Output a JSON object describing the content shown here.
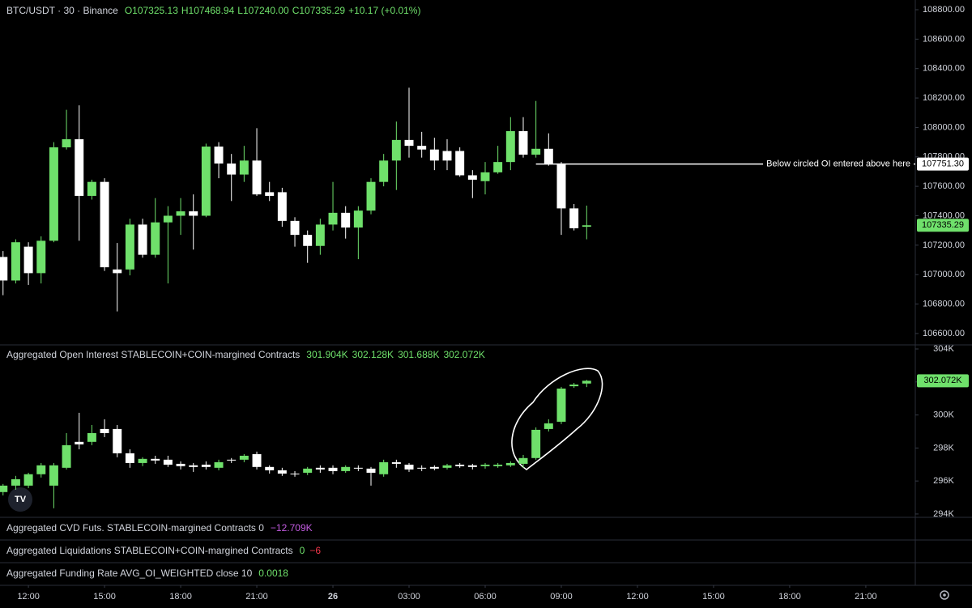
{
  "chart_data": [
    {
      "type": "candlestick",
      "title": "BTC/USDT · 30 · Binance",
      "ohlc_labels": [
        "O107325.13",
        "H107468.94",
        "L107240.00",
        "C107335.29",
        "+10.17 (+0.01%)"
      ],
      "x": [
        -1,
        -0.5,
        0,
        0.5,
        1,
        1.5,
        2,
        2.5,
        3,
        3.5,
        4,
        4.5,
        5,
        5.5,
        6,
        6.5,
        7,
        7.5,
        8,
        8.5,
        9,
        9.5,
        10,
        10.5,
        11,
        11.5,
        12,
        12.5,
        13,
        13.5,
        14,
        14.5,
        15,
        15.5,
        16,
        16.5,
        17,
        17.5,
        18,
        18.5,
        19,
        19.5,
        20,
        20.5,
        21,
        21.5,
        22
      ],
      "open": [
        107120,
        106960,
        107190,
        107010,
        107230,
        107865,
        107920,
        107535,
        107630,
        107035,
        107035,
        107340,
        107135,
        107355,
        107400,
        107430,
        107400,
        107870,
        107755,
        107680,
        107775,
        107560,
        107560,
        107365,
        107270,
        107195,
        107340,
        107420,
        107320,
        107435,
        107630,
        107775,
        107915,
        107875,
        107850,
        107840,
        107840,
        107675,
        107635,
        107695,
        107765,
        107975,
        107815,
        107855,
        107755,
        107450,
        107325.13
      ],
      "high": [
        107160,
        107240,
        107220,
        107260,
        107900,
        108120,
        108150,
        107645,
        107655,
        107215,
        107380,
        107380,
        107520,
        107465,
        107520,
        107545,
        107890,
        107900,
        107820,
        107875,
        107995,
        107630,
        107590,
        107390,
        107300,
        107380,
        107630,
        107465,
        107465,
        107655,
        107820,
        108040,
        108270,
        107970,
        107930,
        107920,
        107865,
        107710,
        107765,
        107875,
        108070,
        108070,
        108180,
        107960,
        107765,
        107480,
        107468.94
      ],
      "low": [
        106860,
        106940,
        106930,
        106940,
        107220,
        107850,
        107230,
        107510,
        107025,
        106750,
        106995,
        107115,
        107115,
        106940,
        107270,
        107170,
        107390,
        107655,
        107500,
        107630,
        107535,
        107500,
        107325,
        107190,
        107080,
        107135,
        107300,
        107245,
        107105,
        107410,
        107600,
        107575,
        107795,
        107795,
        107710,
        107710,
        107665,
        107520,
        107545,
        107685,
        107710,
        107795,
        107795,
        107740,
        107270,
        107300,
        107240
      ],
      "close": [
        106960,
        107220,
        107010,
        107230,
        107865,
        107920,
        107535,
        107630,
        107050,
        107010,
        107340,
        107135,
        107355,
        107400,
        107430,
        107400,
        107870,
        107755,
        107680,
        107775,
        107545,
        107535,
        107365,
        107270,
        107195,
        107340,
        107420,
        107320,
        107435,
        107630,
        107775,
        107915,
        107875,
        107850,
        107775,
        107775,
        107675,
        107645,
        107695,
        107765,
        107975,
        107815,
        107855,
        107755,
        107450,
        107315,
        107335.29
      ],
      "up_color": "#6fe06b",
      "down_color": "#ffffff",
      "xlim": [
        -1.12,
        34.95
      ],
      "xticks": [
        {
          "value": 0,
          "label": "12:00"
        },
        {
          "value": 3,
          "label": "15:00"
        },
        {
          "value": 6,
          "label": "18:00"
        },
        {
          "value": 9,
          "label": "21:00"
        },
        {
          "value": 12,
          "label": "26"
        },
        {
          "value": 15,
          "label": "03:00"
        },
        {
          "value": 18,
          "label": "06:00"
        },
        {
          "value": 21,
          "label": "09:00"
        },
        {
          "value": 24,
          "label": "12:00"
        },
        {
          "value": 27,
          "label": "15:00"
        },
        {
          "value": 30,
          "label": "18:00"
        },
        {
          "value": 33,
          "label": "21:00"
        }
      ],
      "ylim": [
        106528,
        108866
      ],
      "yticks": [
        {
          "value": 106600,
          "label": "106600.00"
        },
        {
          "value": 106800,
          "label": "106800.00"
        },
        {
          "value": 107000,
          "label": "107000.00"
        },
        {
          "value": 107200,
          "label": "107200.00"
        },
        {
          "value": 107400,
          "label": "107400.00"
        },
        {
          "value": 107600,
          "label": "107600.00"
        },
        {
          "value": 107800,
          "label": "107800.00"
        },
        {
          "value": 108000,
          "label": "108000.00"
        },
        {
          "value": 108200,
          "label": "108200.00"
        },
        {
          "value": 108400,
          "label": "108400.00"
        },
        {
          "value": 108600,
          "label": "108600.00"
        },
        {
          "value": 108800,
          "label": "108800.00"
        }
      ],
      "last_price": 107335.29,
      "hline": {
        "value": 107751.3,
        "label": "107751.30",
        "start_x": 20,
        "annotation": "Below circled OI entered above here"
      }
    },
    {
      "type": "candlestick",
      "title": "Aggregated Open Interest STABLECOIN+COIN-margined Contracts",
      "ohlc_labels": [
        "301.904K",
        "302.128K",
        "301.688K",
        "302.072K"
      ],
      "open": [
        295.33,
        295.72,
        295.72,
        296.41,
        295.72,
        296.8,
        298.37,
        298.37,
        299.15,
        299.15,
        297.68,
        297.09,
        297.34,
        297.29,
        297.04,
        296.95,
        296.99,
        296.8,
        297.29,
        297.29,
        297.63,
        296.85,
        296.65,
        296.45,
        296.5,
        296.8,
        296.8,
        296.6,
        296.8,
        296.75,
        296.41,
        297.14,
        296.99,
        296.8,
        296.85,
        296.8,
        296.99,
        296.95,
        296.9,
        296.9,
        296.95,
        297.04,
        297.39,
        299.15,
        299.59,
        301.74,
        301.904
      ],
      "high": [
        295.82,
        296.31,
        296.5,
        297.09,
        297.09,
        298.9,
        300.13,
        299.39,
        299.74,
        299.39,
        297.92,
        297.44,
        297.53,
        297.53,
        297.19,
        297.09,
        297.19,
        297.29,
        297.39,
        297.63,
        297.78,
        296.95,
        296.8,
        296.6,
        296.85,
        296.95,
        296.95,
        296.95,
        296.95,
        296.85,
        297.29,
        297.29,
        297.09,
        296.95,
        296.95,
        297.04,
        297.09,
        297.04,
        297.09,
        297.09,
        297.19,
        297.58,
        299.25,
        299.74,
        301.7,
        301.94,
        302.128
      ],
      "low": [
        295.13,
        295.47,
        295.57,
        296.21,
        294.35,
        296.7,
        297.92,
        298.17,
        298.66,
        297.44,
        296.8,
        296.9,
        297.04,
        296.85,
        296.7,
        296.55,
        296.7,
        296.65,
        297.09,
        297.14,
        296.7,
        296.45,
        296.31,
        296.26,
        296.36,
        296.5,
        296.41,
        296.5,
        296.6,
        295.72,
        296.26,
        296.8,
        296.55,
        296.6,
        296.65,
        296.7,
        296.8,
        296.7,
        296.75,
        296.8,
        296.85,
        296.8,
        297.29,
        299.0,
        299.45,
        301.64,
        301.688
      ],
      "close": [
        295.72,
        296.11,
        296.41,
        296.95,
        296.95,
        298.17,
        298.22,
        298.9,
        298.9,
        297.68,
        297.09,
        297.34,
        297.24,
        296.99,
        296.9,
        296.85,
        296.85,
        297.14,
        297.24,
        297.53,
        296.85,
        296.65,
        296.45,
        296.41,
        296.75,
        296.7,
        296.6,
        296.85,
        296.75,
        296.5,
        297.14,
        297.04,
        296.7,
        296.75,
        296.75,
        296.95,
        296.9,
        296.85,
        296.99,
        296.99,
        297.09,
        297.39,
        299.1,
        299.49,
        301.6,
        301.84,
        302.072
      ],
      "up_color": "#6fe06b",
      "down_color": "#ffffff",
      "xlim": [
        -1.12,
        34.95
      ],
      "ylim": [
        293.8,
        304.245
      ],
      "yticks": [
        {
          "value": 294,
          "label": "294K"
        },
        {
          "value": 296,
          "label": "296K"
        },
        {
          "value": 298,
          "label": "298K"
        },
        {
          "value": 300,
          "label": "300K"
        },
        {
          "value": 302,
          "label": "302K"
        },
        {
          "value": 304,
          "label": "304K"
        }
      ],
      "last_price": {
        "value": 302.072,
        "label": "302.072K"
      }
    }
  ],
  "indicators": [
    {
      "title": "Aggregated CVD Futs. STABLECOIN-margined Contracts 0",
      "values": [
        "−12.709K"
      ]
    },
    {
      "title": "Aggregated Liquidations STABLECOIN+COIN-margined Contracts",
      "values": [
        "0",
        "−6"
      ]
    },
    {
      "title": "Aggregated Funding Rate AVG_OI_WEIGHTED close 10",
      "values": [
        "0.0018"
      ]
    }
  ]
}
